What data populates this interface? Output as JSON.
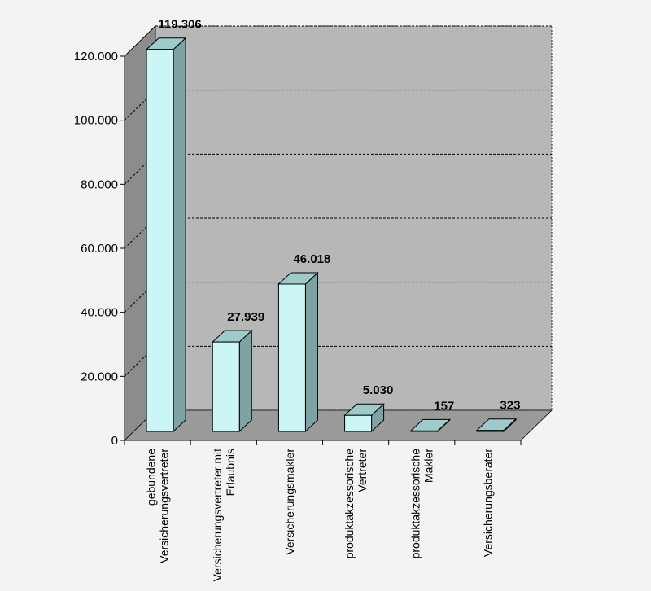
{
  "chart_data": {
    "type": "bar",
    "categories": [
      [
        "gebundene",
        "Versicherungsvertreter"
      ],
      [
        "Versicherungsvertreter mit",
        "Erlaubnis"
      ],
      [
        "Versicherungsmakler"
      ],
      [
        "produktakzessorische",
        "Vertreter"
      ],
      [
        "produktakzessorische",
        "Makler"
      ],
      [
        "Versicherungsberater"
      ]
    ],
    "values": [
      119306,
      27939,
      46018,
      5030,
      157,
      323
    ],
    "data_labels": [
      "119.306",
      "27.939",
      "46.018",
      "5.030",
      "157",
      "323"
    ],
    "ylim": [
      0,
      120000
    ],
    "yticks": [
      0,
      20000,
      40000,
      60000,
      80000,
      100000,
      120000
    ],
    "ytick_labels": [
      "0",
      "20.000",
      "40.000",
      "60.000",
      "80.000",
      "100.000",
      "120.000"
    ],
    "grid": true,
    "three_d": true,
    "colors": {
      "page_bg": "#f3f3f3",
      "back_wall": "#b7b7b7",
      "side_wall": "#8c8c8c",
      "floor": "#9a9a9a",
      "bar_front": "#ccf6f6",
      "bar_top": "#9fcaca",
      "bar_side": "#7ea3a3",
      "stroke": "#000000"
    }
  }
}
